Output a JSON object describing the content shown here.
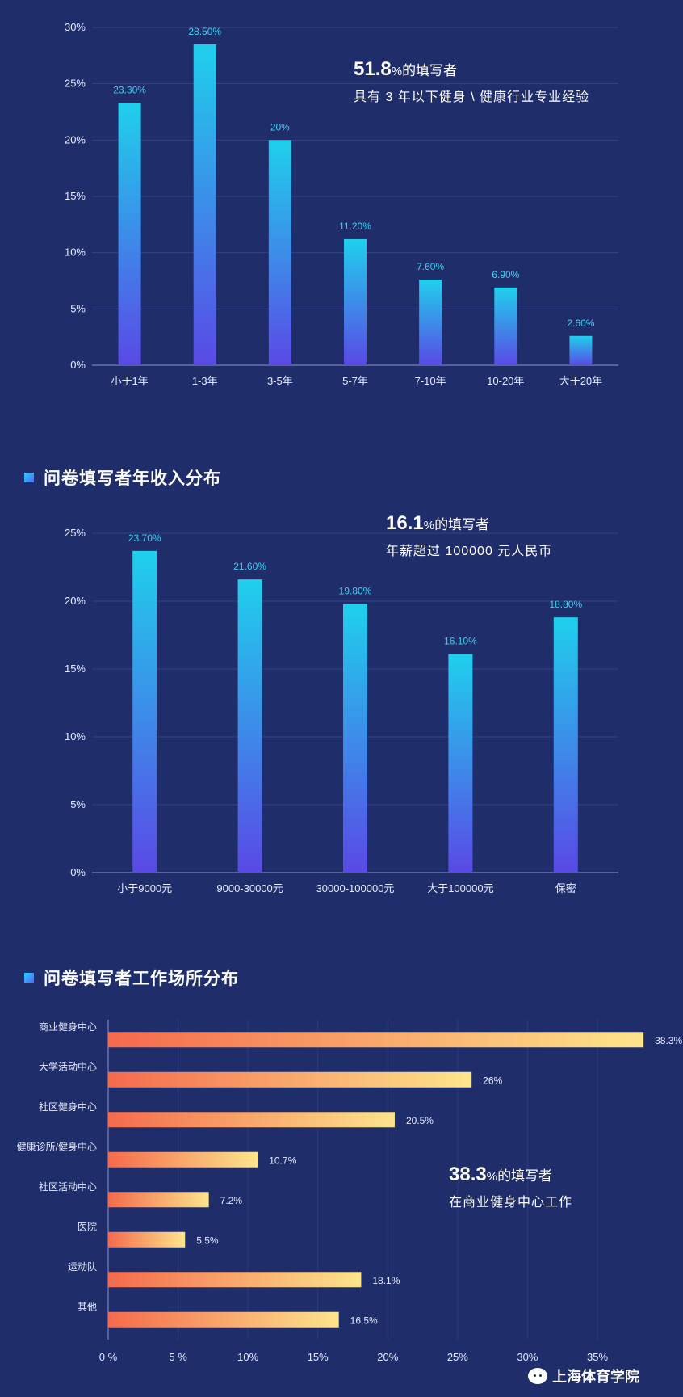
{
  "sections": {
    "income_title": "问卷填写者年收入分布",
    "workplace_title": "问卷填写者工作场所分布"
  },
  "callouts": {
    "experience": {
      "big": "51.8",
      "pct": "%",
      "text": "的填写者",
      "line2": "具有 3 年以下健身 \\ 健康行业专业经验"
    },
    "income": {
      "big": "16.1",
      "pct": "%",
      "text": "的填写者",
      "line2": "年薪超过 100000 元人民币"
    },
    "workplace": {
      "big": "38.3",
      "pct": "%",
      "text": "的填写者",
      "line2": "在商业健身中心工作"
    }
  },
  "watermark": {
    "text": "上海体育学院",
    "icon": "wechat-icon"
  },
  "colors": {
    "bar_top": "#1fd0ec",
    "bar_bottom": "#5a49e6",
    "hbar_left": "#f56a4c",
    "hbar_right": "#fde58c",
    "label": "#3fd0f0"
  },
  "chart_data": [
    {
      "type": "bar",
      "categories": [
        "小于1年",
        "1-3年",
        "3-5年",
        "5-7年",
        "7-10年",
        "10-20年",
        "大于20年"
      ],
      "values": [
        23.3,
        28.5,
        20,
        11.2,
        7.6,
        6.9,
        2.6
      ],
      "data_labels": [
        "23.30%",
        "28.50%",
        "20%",
        "11.20%",
        "7.60%",
        "6.90%",
        "2.60%"
      ],
      "yticks": [
        "0%",
        "5%",
        "10%",
        "15%",
        "20%",
        "25%",
        "30%"
      ],
      "ylim": [
        0,
        30
      ],
      "grid": true
    },
    {
      "type": "bar",
      "categories": [
        "小于9000元",
        "9000-30000元",
        "30000-100000元",
        "大于100000元",
        "保密"
      ],
      "values": [
        23.7,
        21.6,
        19.8,
        16.1,
        18.8
      ],
      "data_labels": [
        "23.70%",
        "21.60%",
        "19.80%",
        "16.10%",
        "18.80%"
      ],
      "yticks": [
        "0%",
        "5%",
        "10%",
        "15%",
        "20%",
        "25%"
      ],
      "ylim": [
        0,
        25
      ],
      "grid": true
    },
    {
      "type": "bar",
      "orientation": "horizontal",
      "categories": [
        "商业健身中心",
        "大学活动中心",
        "社区健身中心",
        "健康诊所/健身中心",
        "社区活动中心",
        "医院",
        "运动队",
        "其他"
      ],
      "values": [
        38.3,
        26,
        20.5,
        10.7,
        7.2,
        5.5,
        18.1,
        16.5
      ],
      "data_labels": [
        "38.3%",
        "26%",
        "20.5%",
        "10.7%",
        "7.2%",
        "5.5%",
        "18.1%",
        "16.5%"
      ],
      "xticks": [
        "0 %",
        "5 %",
        "10%",
        "15%",
        "20%",
        "25%",
        "30%",
        "35%"
      ],
      "xlim": [
        0,
        35
      ],
      "grid": true
    }
  ]
}
